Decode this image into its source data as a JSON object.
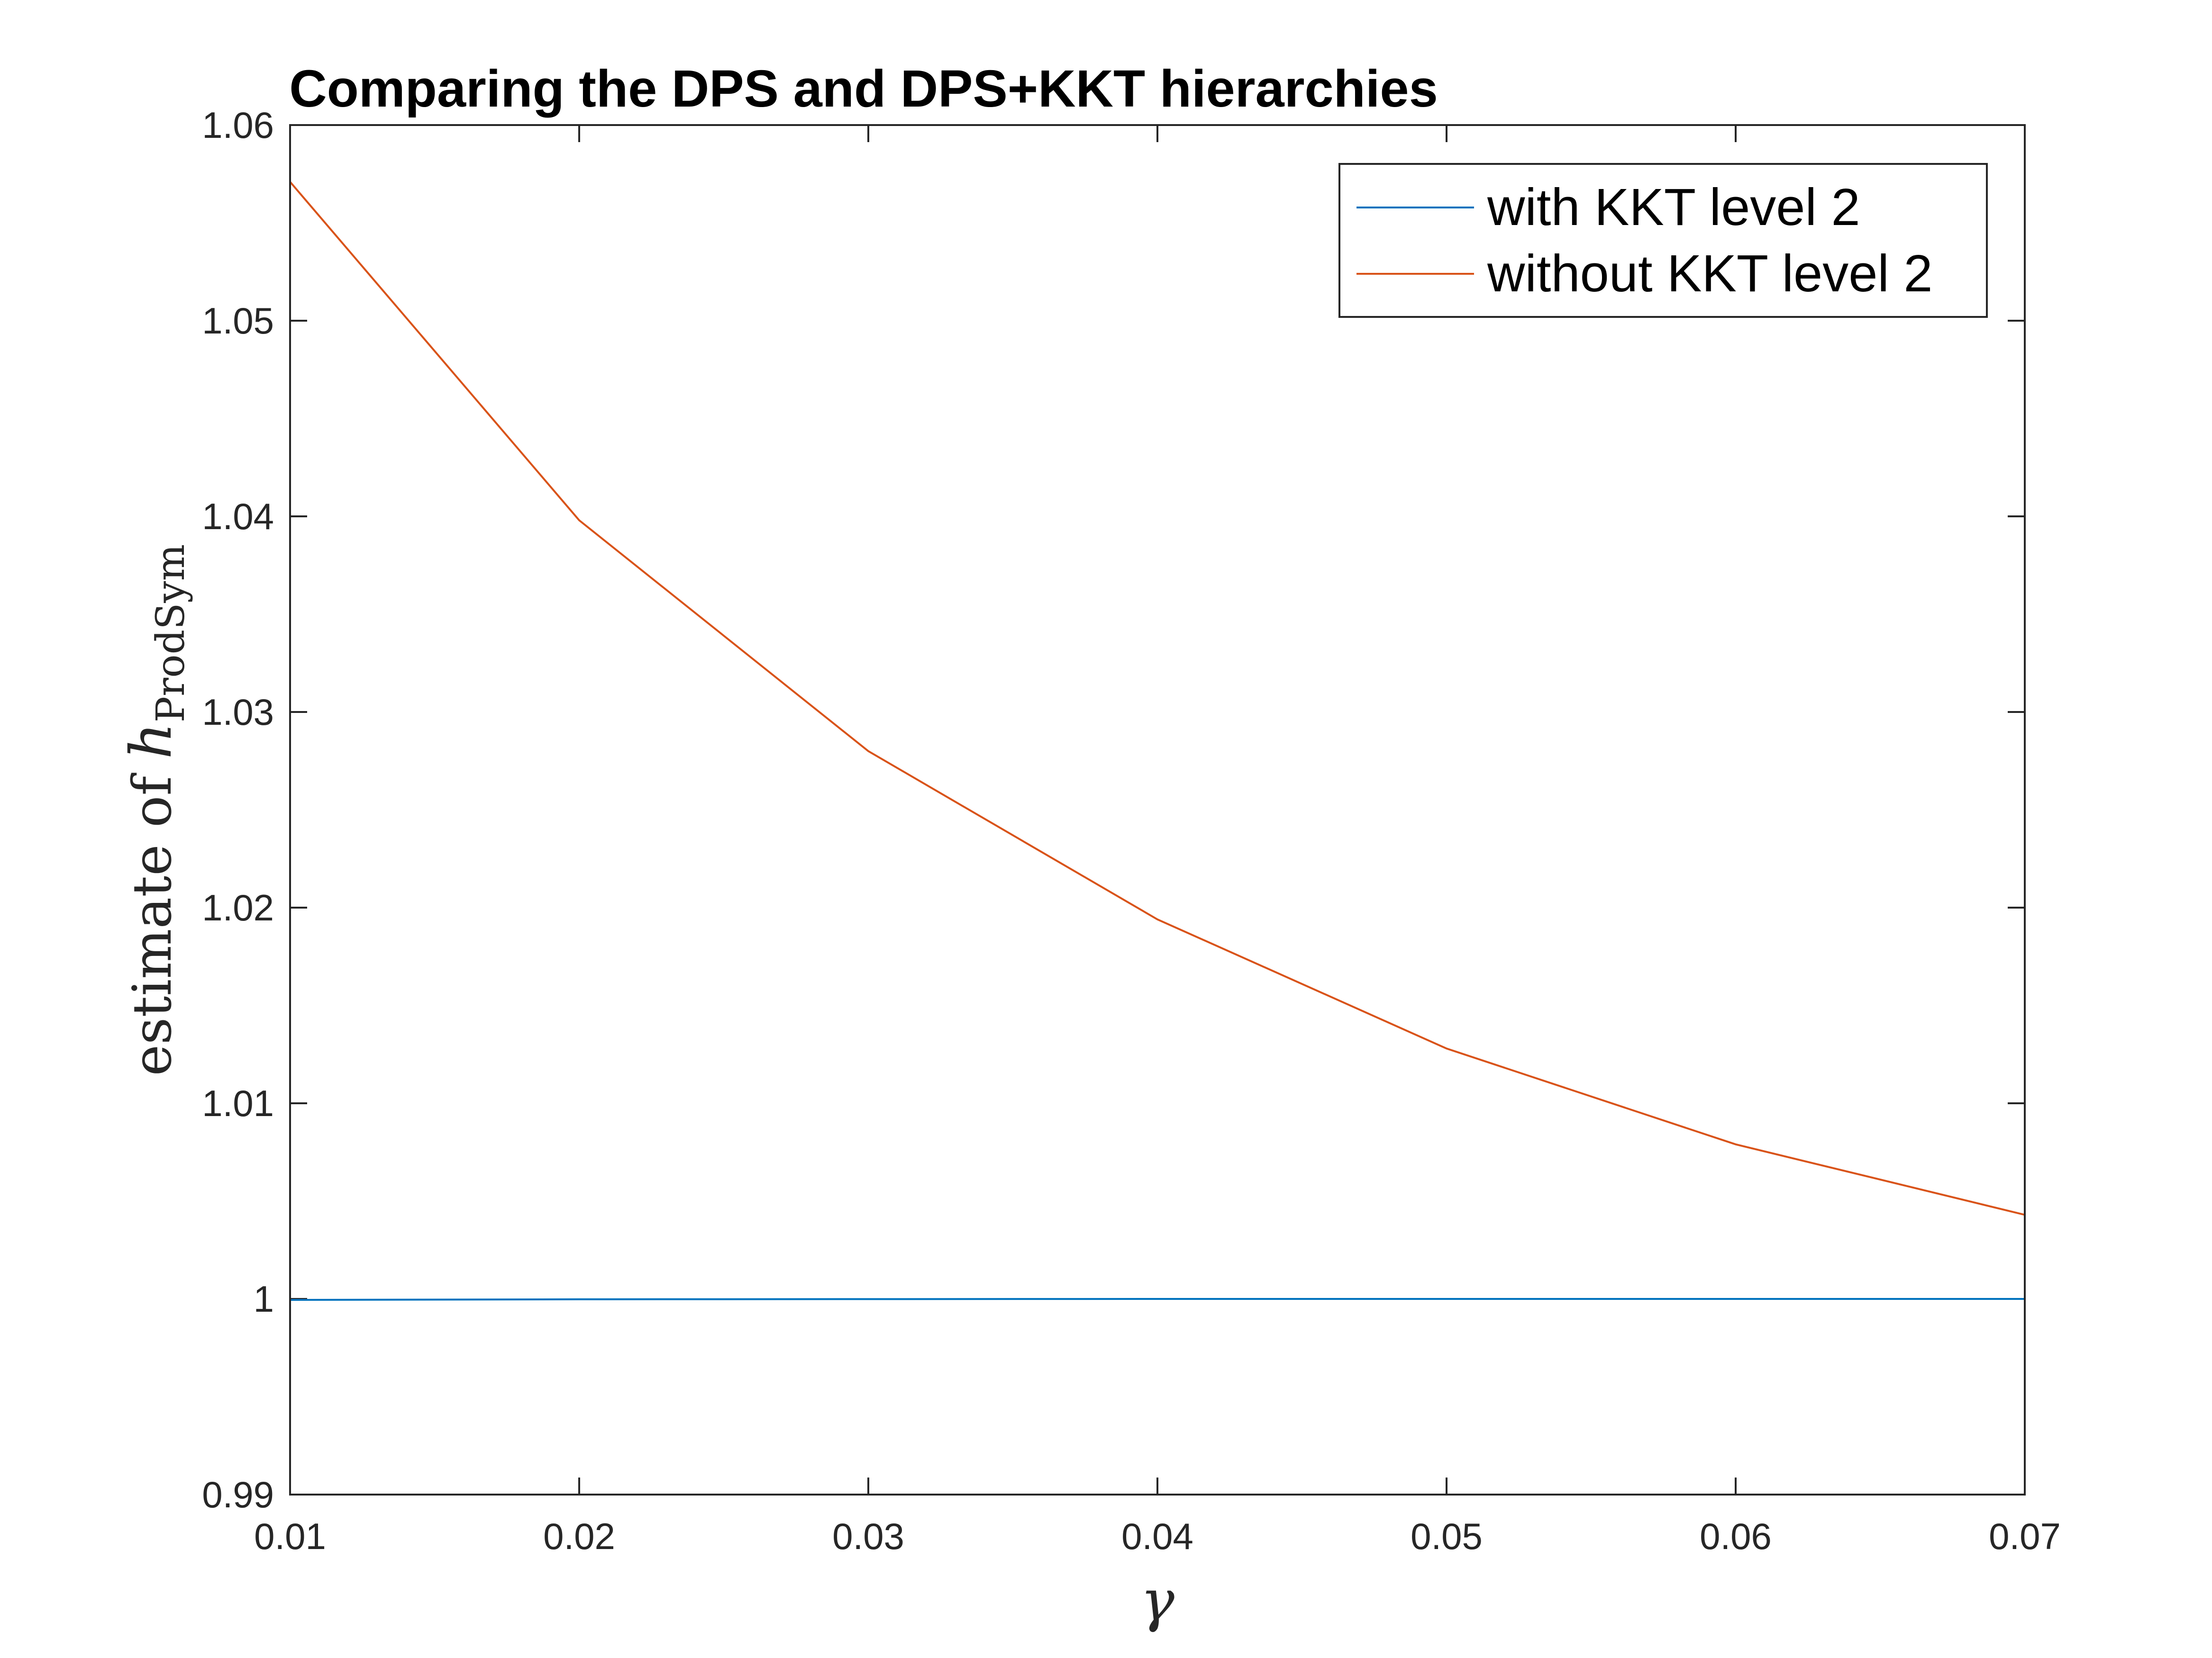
{
  "chart_data": {
    "type": "line",
    "title": "Comparing the DPS and DPS+KKT hierarchies",
    "xlabel": "γ",
    "ylabel": {
      "prefix": "estimate of ",
      "symbol": "h",
      "subscript": "ProdSym"
    },
    "x": [
      0.01,
      0.02,
      0.03,
      0.04,
      0.05,
      0.06,
      0.07
    ],
    "xlim": [
      0.01,
      0.07
    ],
    "ylim": [
      0.99,
      1.06
    ],
    "xticks": [
      "0.01",
      "0.02",
      "0.03",
      "0.04",
      "0.05",
      "0.06",
      "0.07"
    ],
    "yticks": [
      "0.99",
      "1",
      "1.01",
      "1.02",
      "1.03",
      "1.04",
      "1.05",
      "1.06"
    ],
    "grid": false,
    "legend_position": "top-right",
    "series": [
      {
        "name": "with KKT level 2",
        "color": "#0072BD",
        "values": [
          0.99995,
          0.99998,
          0.99999,
          1.0,
          1.0,
          1.0,
          1.0
        ]
      },
      {
        "name": "without KKT level 2",
        "color": "#D95319",
        "values": [
          1.0571,
          1.0398,
          1.028,
          1.0194,
          1.0128,
          1.0079,
          1.0043
        ]
      }
    ]
  }
}
